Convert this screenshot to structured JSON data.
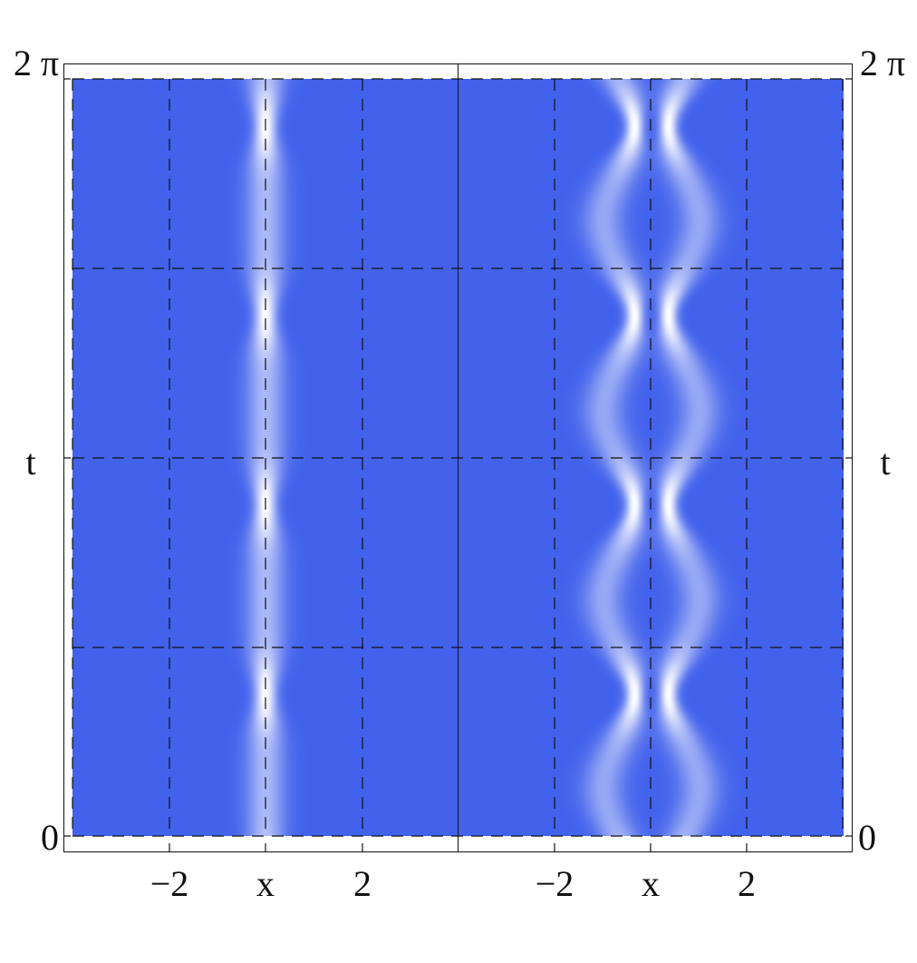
{
  "chart_data": [
    {
      "type": "heatmap",
      "panel": "left",
      "xlabel": "x",
      "ylabel": "t",
      "xlim": [
        -4,
        4
      ],
      "ylim": [
        0,
        6.2832
      ],
      "x_ticks": [
        "-2",
        "2"
      ],
      "y_ticks": [
        "0",
        "2 π"
      ],
      "grid": true,
      "grid_style": "dashed",
      "colors": {
        "low": "#4262ec",
        "high": "#ffffff"
      },
      "description_values": {
        "peak_centers_x": [
          0
        ],
        "narrowest_t": [
          1.18,
          2.75,
          4.32,
          5.89
        ],
        "period_t": 1.5708
      }
    },
    {
      "type": "heatmap",
      "panel": "right",
      "xlabel": "x",
      "ylabel": "t",
      "xlim": [
        -4,
        4
      ],
      "ylim": [
        0,
        6.2832
      ],
      "x_ticks": [
        "-2",
        "2"
      ],
      "y_ticks": [
        "0",
        "2 π"
      ],
      "grid": true,
      "grid_style": "dashed",
      "colors": {
        "low": "#4262ec",
        "high": "#ffffff"
      },
      "description_values": {
        "peak_centers_x_min_separation": [
          -0.35,
          0.35
        ],
        "peak_centers_x_max_separation": [
          -1.0,
          1.0
        ],
        "narrowest_t": [
          1.18,
          2.75,
          4.32,
          5.89
        ],
        "period_t": 1.5708
      }
    }
  ],
  "labels": {
    "left_x_label": "x",
    "right_x_label": "x",
    "left_t_label": "t",
    "right_t_label": "t",
    "left_x_tick_neg": "−2",
    "left_x_tick_pos": "2",
    "right_x_tick_neg": "−2",
    "right_x_tick_pos": "2",
    "left_y_tick_top": "2 π",
    "left_y_tick_bottom": "0",
    "right_y_tick_top": "2 π",
    "right_y_tick_bottom": "0"
  }
}
